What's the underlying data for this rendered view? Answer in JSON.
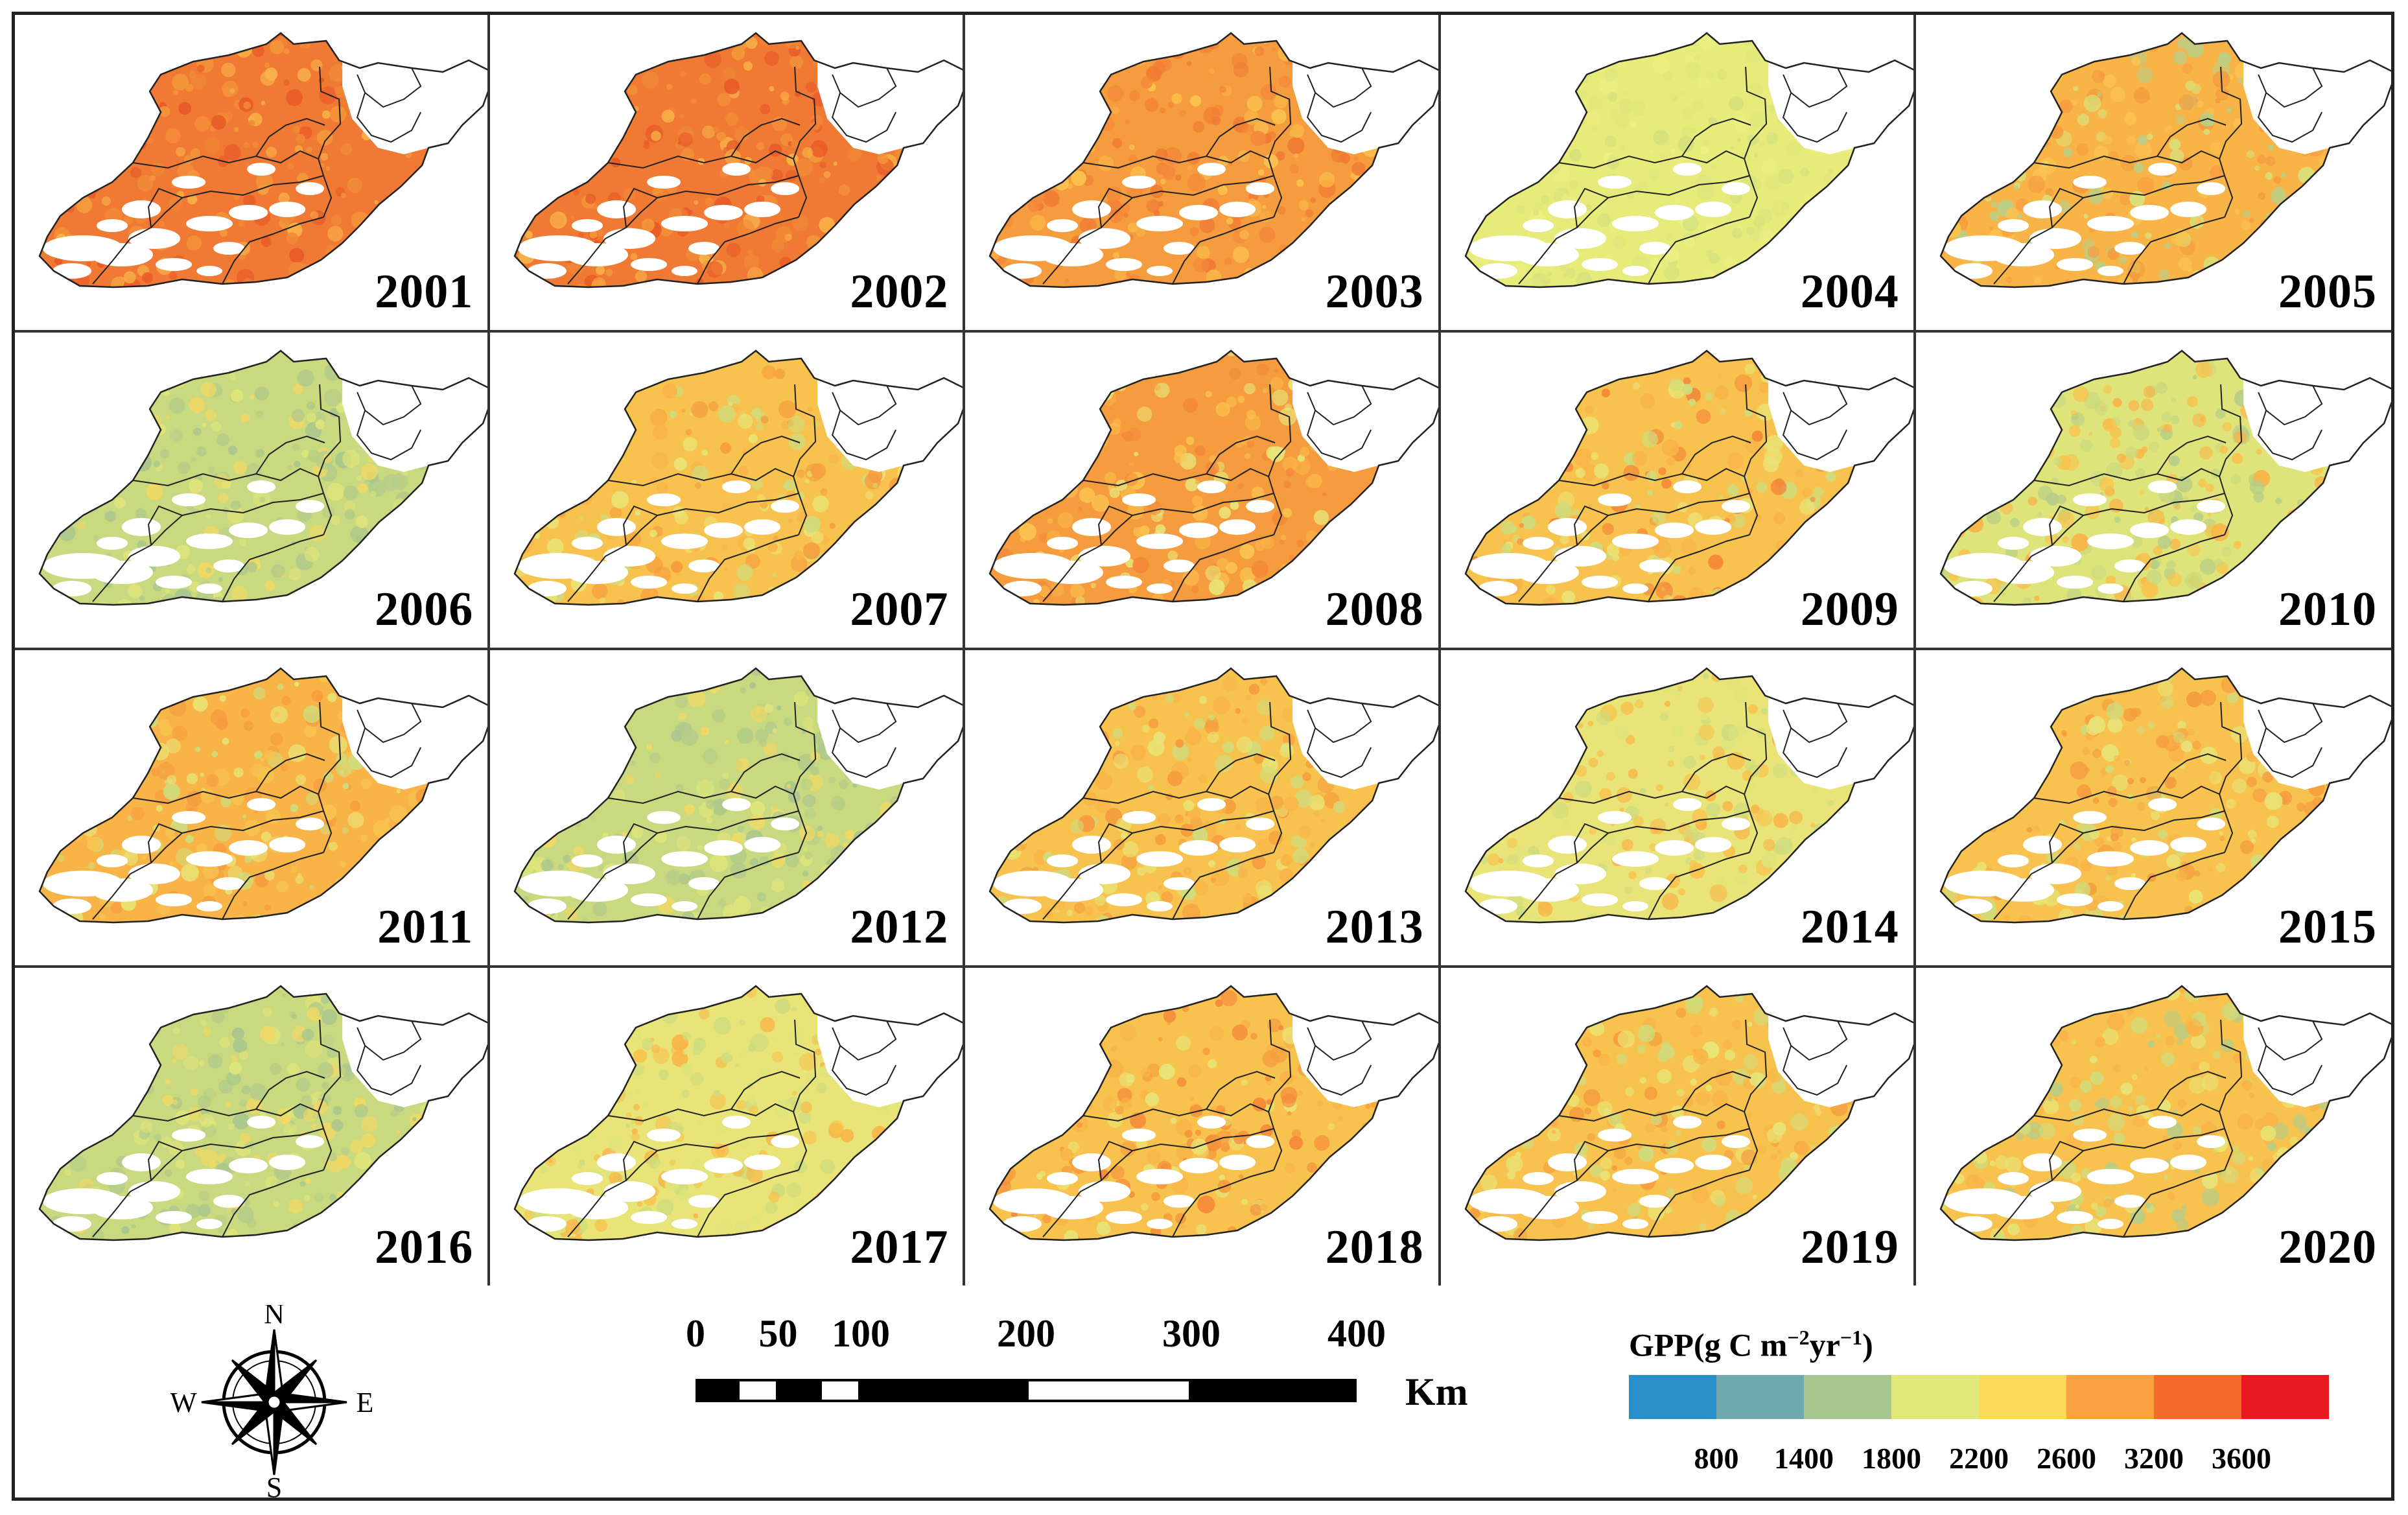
{
  "panels": [
    {
      "year": "2001",
      "palette": [
        "#f07a34",
        "#f4973a",
        "#f08a36",
        "#f9b349",
        "#e85a28"
      ]
    },
    {
      "year": "2002",
      "palette": [
        "#f07a34",
        "#f4973a",
        "#f08a36",
        "#f9b349",
        "#e85a28"
      ]
    },
    {
      "year": "2003",
      "palette": [
        "#f59c3f",
        "#f9b447",
        "#f4893a",
        "#fbc34f",
        "#f07a34"
      ]
    },
    {
      "year": "2004",
      "palette": [
        "#e7eb7a",
        "#dfe67b",
        "#ecef82",
        "#d6e17c",
        "#e2e77a"
      ]
    },
    {
      "year": "2005",
      "palette": [
        "#f9b447",
        "#fbc34f",
        "#f59c3f",
        "#d9e07a",
        "#b9cf87"
      ]
    },
    {
      "year": "2006",
      "palette": [
        "#c9d97f",
        "#dfe47a",
        "#a9c68e",
        "#f2d864",
        "#b6cd88"
      ]
    },
    {
      "year": "2007",
      "palette": [
        "#f7c34e",
        "#e8e477",
        "#f9b447",
        "#cfdc7d",
        "#f59c3f"
      ]
    },
    {
      "year": "2008",
      "palette": [
        "#f59c3f",
        "#f9b447",
        "#f4893a",
        "#e8e477",
        "#fbc34f"
      ]
    },
    {
      "year": "2009",
      "palette": [
        "#f7c34e",
        "#e8e477",
        "#f9b447",
        "#f4893a",
        "#cfdc7d"
      ]
    },
    {
      "year": "2010",
      "palette": [
        "#dfe47a",
        "#f7c34e",
        "#b6cd88",
        "#c9d97f",
        "#f9b447"
      ]
    },
    {
      "year": "2011",
      "palette": [
        "#f9b447",
        "#f7c34e",
        "#e8e477",
        "#f59c3f",
        "#cfdc7d"
      ]
    },
    {
      "year": "2012",
      "palette": [
        "#c9d97f",
        "#a9c68e",
        "#dfe47a",
        "#f2d864",
        "#b6cd88"
      ]
    },
    {
      "year": "2013",
      "palette": [
        "#f7c34e",
        "#e8e477",
        "#f9b447",
        "#cfdc7d",
        "#f59c3f"
      ]
    },
    {
      "year": "2014",
      "palette": [
        "#e8e477",
        "#f7c34e",
        "#cfdc7d",
        "#f9b447",
        "#dfe47a"
      ]
    },
    {
      "year": "2015",
      "palette": [
        "#f7c34e",
        "#f9b447",
        "#e8e477",
        "#cfdc7d",
        "#f59c3f"
      ]
    },
    {
      "year": "2016",
      "palette": [
        "#c9d97f",
        "#a9c68e",
        "#dfe47a",
        "#b6cd88",
        "#f2d864"
      ]
    },
    {
      "year": "2017",
      "palette": [
        "#e8e477",
        "#f7c34e",
        "#cfdc7d",
        "#dfe47a",
        "#f9b447"
      ]
    },
    {
      "year": "2018",
      "palette": [
        "#f7c34e",
        "#f59c3f",
        "#f9b447",
        "#e8e477",
        "#f4893a"
      ]
    },
    {
      "year": "2019",
      "palette": [
        "#f7c34e",
        "#e8e477",
        "#f9b447",
        "#cfdc7d",
        "#f59c3f"
      ]
    },
    {
      "year": "2020",
      "palette": [
        "#f7c34e",
        "#e8e477",
        "#f9b447",
        "#cfdc7d",
        "#b6cd88"
      ]
    }
  ],
  "compass": {
    "north": "N",
    "south": "S",
    "east": "E",
    "west": "W"
  },
  "scale_bar": {
    "ticks": [
      "0",
      "50",
      "100",
      "200",
      "300",
      "400"
    ],
    "tick_values": [
      0,
      50,
      100,
      200,
      300,
      400
    ],
    "max_km": 400,
    "segments": [
      {
        "from_km": 0,
        "to_km": 25,
        "fill": "#000000"
      },
      {
        "from_km": 25,
        "to_km": 50,
        "fill": "#ffffff"
      },
      {
        "from_km": 50,
        "to_km": 75,
        "fill": "#000000"
      },
      {
        "from_km": 75,
        "to_km": 100,
        "fill": "#ffffff"
      },
      {
        "from_km": 100,
        "to_km": 200,
        "fill": "#000000"
      },
      {
        "from_km": 200,
        "to_km": 300,
        "fill": "#ffffff"
      },
      {
        "from_km": 300,
        "to_km": 400,
        "fill": "#000000"
      }
    ],
    "unit": "Km"
  },
  "gpp_legend": {
    "title": "GPP(g C m",
    "title_sup1": "−2",
    "title_mid": "yr",
    "title_sup2": "−1",
    "title_end": ")",
    "colors": [
      "#2b90c9",
      "#6fa8ad",
      "#a8c690",
      "#dfe878",
      "#fdd95a",
      "#f9a040",
      "#f46a28",
      "#e8181f"
    ],
    "ticks": [
      "800",
      "1400",
      "1800",
      "2200",
      "2600",
      "3200",
      "3600"
    ]
  }
}
